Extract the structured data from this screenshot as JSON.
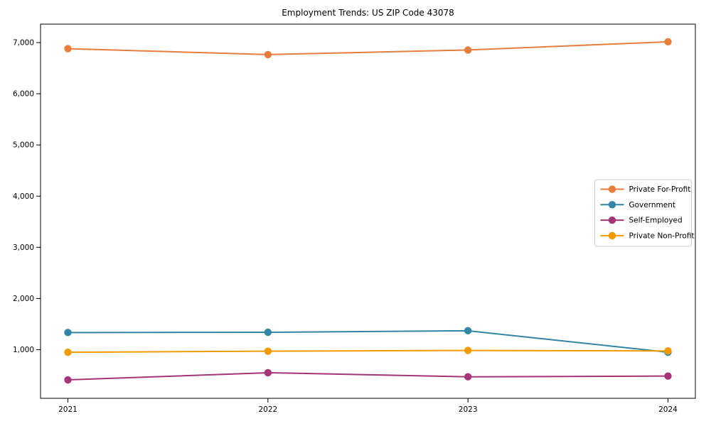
{
  "chart_data": {
    "type": "line",
    "title": "Employment Trends: US ZIP Code 43078",
    "xlabel": "",
    "ylabel": "",
    "x_tick_labels": [
      "2021",
      "2022",
      "2023",
      "2024"
    ],
    "y_ticks": [
      1000,
      2000,
      3000,
      4000,
      5000,
      6000,
      7000
    ],
    "y_tick_labels": [
      "1,000",
      "2,000",
      "3,000",
      "4,000",
      "5,000",
      "6,000",
      "7,000"
    ],
    "ylim": [
      50,
      7360
    ],
    "grid": false,
    "legend_position": "center right",
    "frame_color": "#000000",
    "legend_border_color": "#cccccc",
    "series": [
      {
        "name": "Private For-Profit",
        "color": "#E87D3C",
        "values": [
          6880,
          6765,
          6855,
          7015
        ]
      },
      {
        "name": "Government",
        "color": "#3186A6",
        "values": [
          1335,
          1340,
          1370,
          950
        ]
      },
      {
        "name": "Self-Employed",
        "color": "#A53577",
        "values": [
          410,
          550,
          470,
          485
        ]
      },
      {
        "name": "Private Non-Profit",
        "color": "#F29A02",
        "values": [
          950,
          970,
          985,
          975
        ]
      }
    ]
  }
}
